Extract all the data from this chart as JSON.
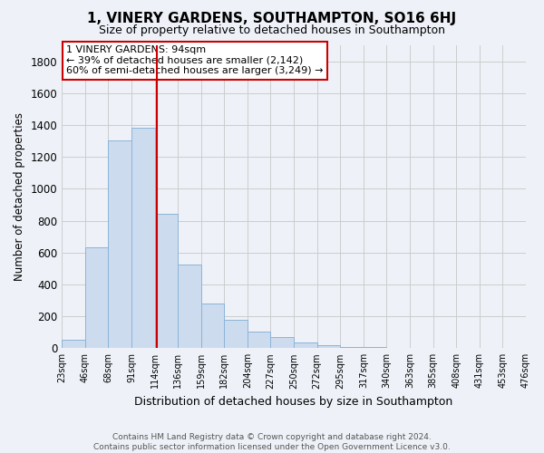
{
  "title": "1, VINERY GARDENS, SOUTHAMPTON, SO16 6HJ",
  "subtitle": "Size of property relative to detached houses in Southampton",
  "xlabel": "Distribution of detached houses by size in Southampton",
  "ylabel": "Number of detached properties",
  "bar_values": [
    55,
    635,
    1305,
    1385,
    845,
    525,
    280,
    180,
    105,
    70,
    35,
    20,
    10,
    5,
    3,
    2,
    1,
    0,
    0,
    0
  ],
  "bin_labels": [
    "23sqm",
    "46sqm",
    "68sqm",
    "91sqm",
    "114sqm",
    "136sqm",
    "159sqm",
    "182sqm",
    "204sqm",
    "227sqm",
    "250sqm",
    "272sqm",
    "295sqm",
    "317sqm",
    "340sqm",
    "363sqm",
    "385sqm",
    "408sqm",
    "431sqm",
    "453sqm",
    "476sqm"
  ],
  "bar_color": "#ccdcee",
  "bar_edge_color": "#8ab4d8",
  "vline_color": "#cc0000",
  "ylim": [
    0,
    1900
  ],
  "yticks": [
    0,
    200,
    400,
    600,
    800,
    1000,
    1200,
    1400,
    1600,
    1800
  ],
  "annotation_title": "1 VINERY GARDENS: 94sqm",
  "annotation_line1": "← 39% of detached houses are smaller (2,142)",
  "annotation_line2": "60% of semi-detached houses are larger (3,249) →",
  "annotation_box_color": "#ffffff",
  "annotation_box_edge": "#cc0000",
  "footer1": "Contains HM Land Registry data © Crown copyright and database right 2024.",
  "footer2": "Contains public sector information licensed under the Open Government Licence v3.0.",
  "grid_color": "#cccccc",
  "background_color": "#eef2f8"
}
